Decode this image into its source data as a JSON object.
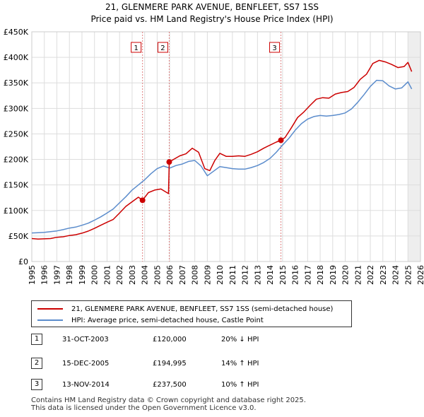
{
  "chart_data": {
    "type": "line",
    "title": "21, GLENMERE PARK AVENUE, BENFLEET, SS7 1SS",
    "subtitle": "Price paid vs. HM Land Registry's House Price Index (HPI)",
    "xlim": [
      1995,
      2026
    ],
    "ylim": [
      0,
      450000
    ],
    "x_ticks": [
      "1995",
      "1996",
      "1997",
      "1998",
      "1999",
      "2000",
      "2001",
      "2002",
      "2003",
      "2004",
      "2005",
      "2006",
      "2007",
      "2008",
      "2009",
      "2010",
      "2011",
      "2012",
      "2013",
      "2014",
      "2015",
      "2016",
      "2017",
      "2018",
      "2019",
      "2020",
      "2021",
      "2022",
      "2023",
      "2024",
      "2025",
      "2026"
    ],
    "y_ticks": [
      {
        "value": 0,
        "label": "£0"
      },
      {
        "value": 50000,
        "label": "£50K"
      },
      {
        "value": 100000,
        "label": "£100K"
      },
      {
        "value": 150000,
        "label": "£150K"
      },
      {
        "value": 200000,
        "label": "£200K"
      },
      {
        "value": 250000,
        "label": "£250K"
      },
      {
        "value": 300000,
        "label": "£300K"
      },
      {
        "value": 350000,
        "label": "£350K"
      },
      {
        "value": 400000,
        "label": "£400K"
      },
      {
        "value": 450000,
        "label": "£450K"
      }
    ],
    "grid": true,
    "future_shade_from": 2025.0,
    "series": [
      {
        "name": "21, GLENMERE PARK AVENUE, BENFLEET, SS7 1SS (semi-detached house)",
        "color": "#cc0000",
        "x": [
          1995.0,
          1995.5,
          1996.0,
          1996.5,
          1997.0,
          1997.5,
          1998.0,
          1998.5,
          1999.0,
          1999.5,
          2000.0,
          2000.5,
          2001.0,
          2001.5,
          2002.0,
          2002.5,
          2003.0,
          2003.5,
          2003.83,
          2004.3,
          2004.8,
          2005.3,
          2005.9,
          2005.96,
          2006.3,
          2006.8,
          2007.3,
          2007.8,
          2008.3,
          2008.8,
          2009.2,
          2009.6,
          2010.0,
          2010.5,
          2011.0,
          2011.5,
          2012.0,
          2012.5,
          2013.0,
          2013.5,
          2014.0,
          2014.5,
          2014.87,
          2015.2,
          2015.7,
          2016.2,
          2016.7,
          2017.2,
          2017.7,
          2018.2,
          2018.7,
          2019.2,
          2019.7,
          2020.2,
          2020.7,
          2021.2,
          2021.7,
          2022.2,
          2022.7,
          2023.2,
          2023.7,
          2024.2,
          2024.7,
          2025.0,
          2025.3
        ],
        "values": [
          45000,
          44000,
          44500,
          45000,
          47500,
          48500,
          51000,
          52500,
          55500,
          59500,
          65000,
          71000,
          77000,
          82500,
          95000,
          108000,
          117000,
          126000,
          120000,
          135000,
          140000,
          142000,
          133000,
          194995,
          200000,
          207000,
          211000,
          222000,
          214000,
          182000,
          178000,
          198000,
          212000,
          206000,
          206000,
          207000,
          206000,
          210000,
          215000,
          222000,
          228000,
          234000,
          237500,
          243000,
          262000,
          282000,
          293000,
          306000,
          318000,
          321000,
          320000,
          328000,
          331000,
          333000,
          341000,
          357000,
          367000,
          388000,
          394000,
          391000,
          386000,
          380000,
          382000,
          390000,
          372000
        ]
      },
      {
        "name": "HPI: Average price, semi-detached house, Castle Point",
        "color": "#5b8ccc",
        "x": [
          1995.0,
          1995.5,
          1996.0,
          1996.5,
          1997.0,
          1997.5,
          1998.0,
          1998.5,
          1999.0,
          1999.5,
          2000.0,
          2000.5,
          2001.0,
          2001.5,
          2002.0,
          2002.5,
          2003.0,
          2003.5,
          2004.0,
          2004.5,
          2005.0,
          2005.5,
          2006.0,
          2006.5,
          2007.0,
          2007.5,
          2008.0,
          2008.5,
          2009.0,
          2009.5,
          2010.0,
          2010.5,
          2011.0,
          2011.5,
          2012.0,
          2012.5,
          2013.0,
          2013.5,
          2014.0,
          2014.5,
          2015.0,
          2015.5,
          2016.0,
          2016.5,
          2017.0,
          2017.5,
          2018.0,
          2018.5,
          2019.0,
          2019.5,
          2020.0,
          2020.5,
          2021.0,
          2021.5,
          2022.0,
          2022.5,
          2023.0,
          2023.5,
          2024.0,
          2024.5,
          2025.0,
          2025.3
        ],
        "values": [
          56000,
          56500,
          57000,
          58500,
          60000,
          62500,
          65500,
          67500,
          71000,
          75000,
          81000,
          87500,
          95000,
          103000,
          115000,
          127000,
          140000,
          150000,
          160000,
          172000,
          182000,
          187000,
          183000,
          188000,
          191000,
          196000,
          198000,
          187000,
          168000,
          177000,
          186000,
          184000,
          182000,
          181000,
          181000,
          184000,
          188000,
          194000,
          202000,
          214000,
          228000,
          241000,
          257000,
          270000,
          279000,
          284000,
          286000,
          285000,
          286000,
          288000,
          291000,
          299000,
          312000,
          327000,
          343000,
          355000,
          354000,
          344000,
          338000,
          340000,
          352000,
          338000
        ]
      }
    ],
    "sale_markers": [
      {
        "label": "1",
        "x": 2003.83,
        "value": 120000
      },
      {
        "label": "2",
        "x": 2005.96,
        "value": 194995
      },
      {
        "label": "3",
        "x": 2014.87,
        "value": 237500
      }
    ]
  },
  "legend": {
    "property_label": "21, GLENMERE PARK AVENUE, BENFLEET, SS7 1SS (semi-detached house)",
    "hpi_label": "HPI: Average price, semi-detached house, Castle Point"
  },
  "sales": [
    {
      "num": "1",
      "date": "31-OCT-2003",
      "price": "£120,000",
      "hpi": "20% ↓ HPI"
    },
    {
      "num": "2",
      "date": "15-DEC-2005",
      "price": "£194,995",
      "hpi": "14% ↑ HPI"
    },
    {
      "num": "3",
      "date": "13-NOV-2014",
      "price": "£237,500",
      "hpi": "10% ↑ HPI"
    }
  ],
  "footer": {
    "line1": "Contains HM Land Registry data © Crown copyright and database right 2025.",
    "line2": "This data is licensed under the Open Government Licence v3.0."
  },
  "colors": {
    "property": "#cc0000",
    "hpi": "#5b8ccc",
    "grid": "#dddddd",
    "future_shade": "#eeeeee",
    "marker_line": "#e08080"
  }
}
